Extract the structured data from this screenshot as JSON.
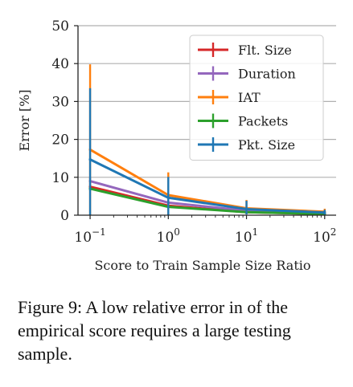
{
  "chart_data": {
    "type": "line",
    "xscale": "log",
    "x": [
      0.1,
      1,
      10,
      100
    ],
    "xticks": [
      0.1,
      1,
      10,
      100
    ],
    "xtick_labels": [
      {
        "base": "10",
        "exp": "−1"
      },
      {
        "base": "10",
        "exp": "0"
      },
      {
        "base": "10",
        "exp": "1"
      },
      {
        "base": "10",
        "exp": "2"
      }
    ],
    "xlabel": "Score to Train Sample Size Ratio",
    "ylabel": "Error [%]",
    "ylim": [
      0,
      50
    ],
    "yticks": [
      0,
      10,
      20,
      30,
      40,
      50
    ],
    "grid": "horizontal",
    "legend_position": "top-right",
    "series": [
      {
        "name": "Flt. Size",
        "color": "#d62728",
        "values": [
          7.5,
          2.5,
          0.8,
          0.3
        ],
        "err_low": [
          0.5,
          0.5,
          0.3,
          0.1
        ],
        "err_high": [
          0.5,
          0.5,
          0.3,
          0.1
        ]
      },
      {
        "name": "Duration",
        "color": "#9467bd",
        "values": [
          9,
          3.3,
          1.2,
          0.5
        ],
        "err_low": [
          1,
          0.5,
          0.3,
          0.2
        ],
        "err_high": [
          1,
          0.5,
          0.3,
          0.2
        ]
      },
      {
        "name": "IAT",
        "color": "#ff7f0e",
        "values": [
          17.3,
          5.3,
          1.8,
          0.9
        ],
        "err_low": [
          17.3,
          5.3,
          1.5,
          0.5
        ],
        "err_high": [
          22.5,
          6,
          2.2,
          0.8
        ]
      },
      {
        "name": "Packets",
        "color": "#2ca02c",
        "values": [
          7,
          2.2,
          0.8,
          0.3
        ],
        "err_low": [
          0.5,
          0.4,
          0.3,
          0.1
        ],
        "err_high": [
          0.5,
          0.4,
          0.3,
          0.1
        ]
      },
      {
        "name": "Pkt. Size",
        "color": "#1f77b4",
        "values": [
          14.7,
          4.6,
          1.6,
          0.7
        ],
        "err_low": [
          14.7,
          4.6,
          1.4,
          0.5
        ],
        "err_high": [
          18.8,
          5.5,
          2.2,
          0.7
        ]
      }
    ]
  },
  "caption": {
    "text": "Figure 9: A low relative error in of the empirical score requires a large testing sample."
  }
}
